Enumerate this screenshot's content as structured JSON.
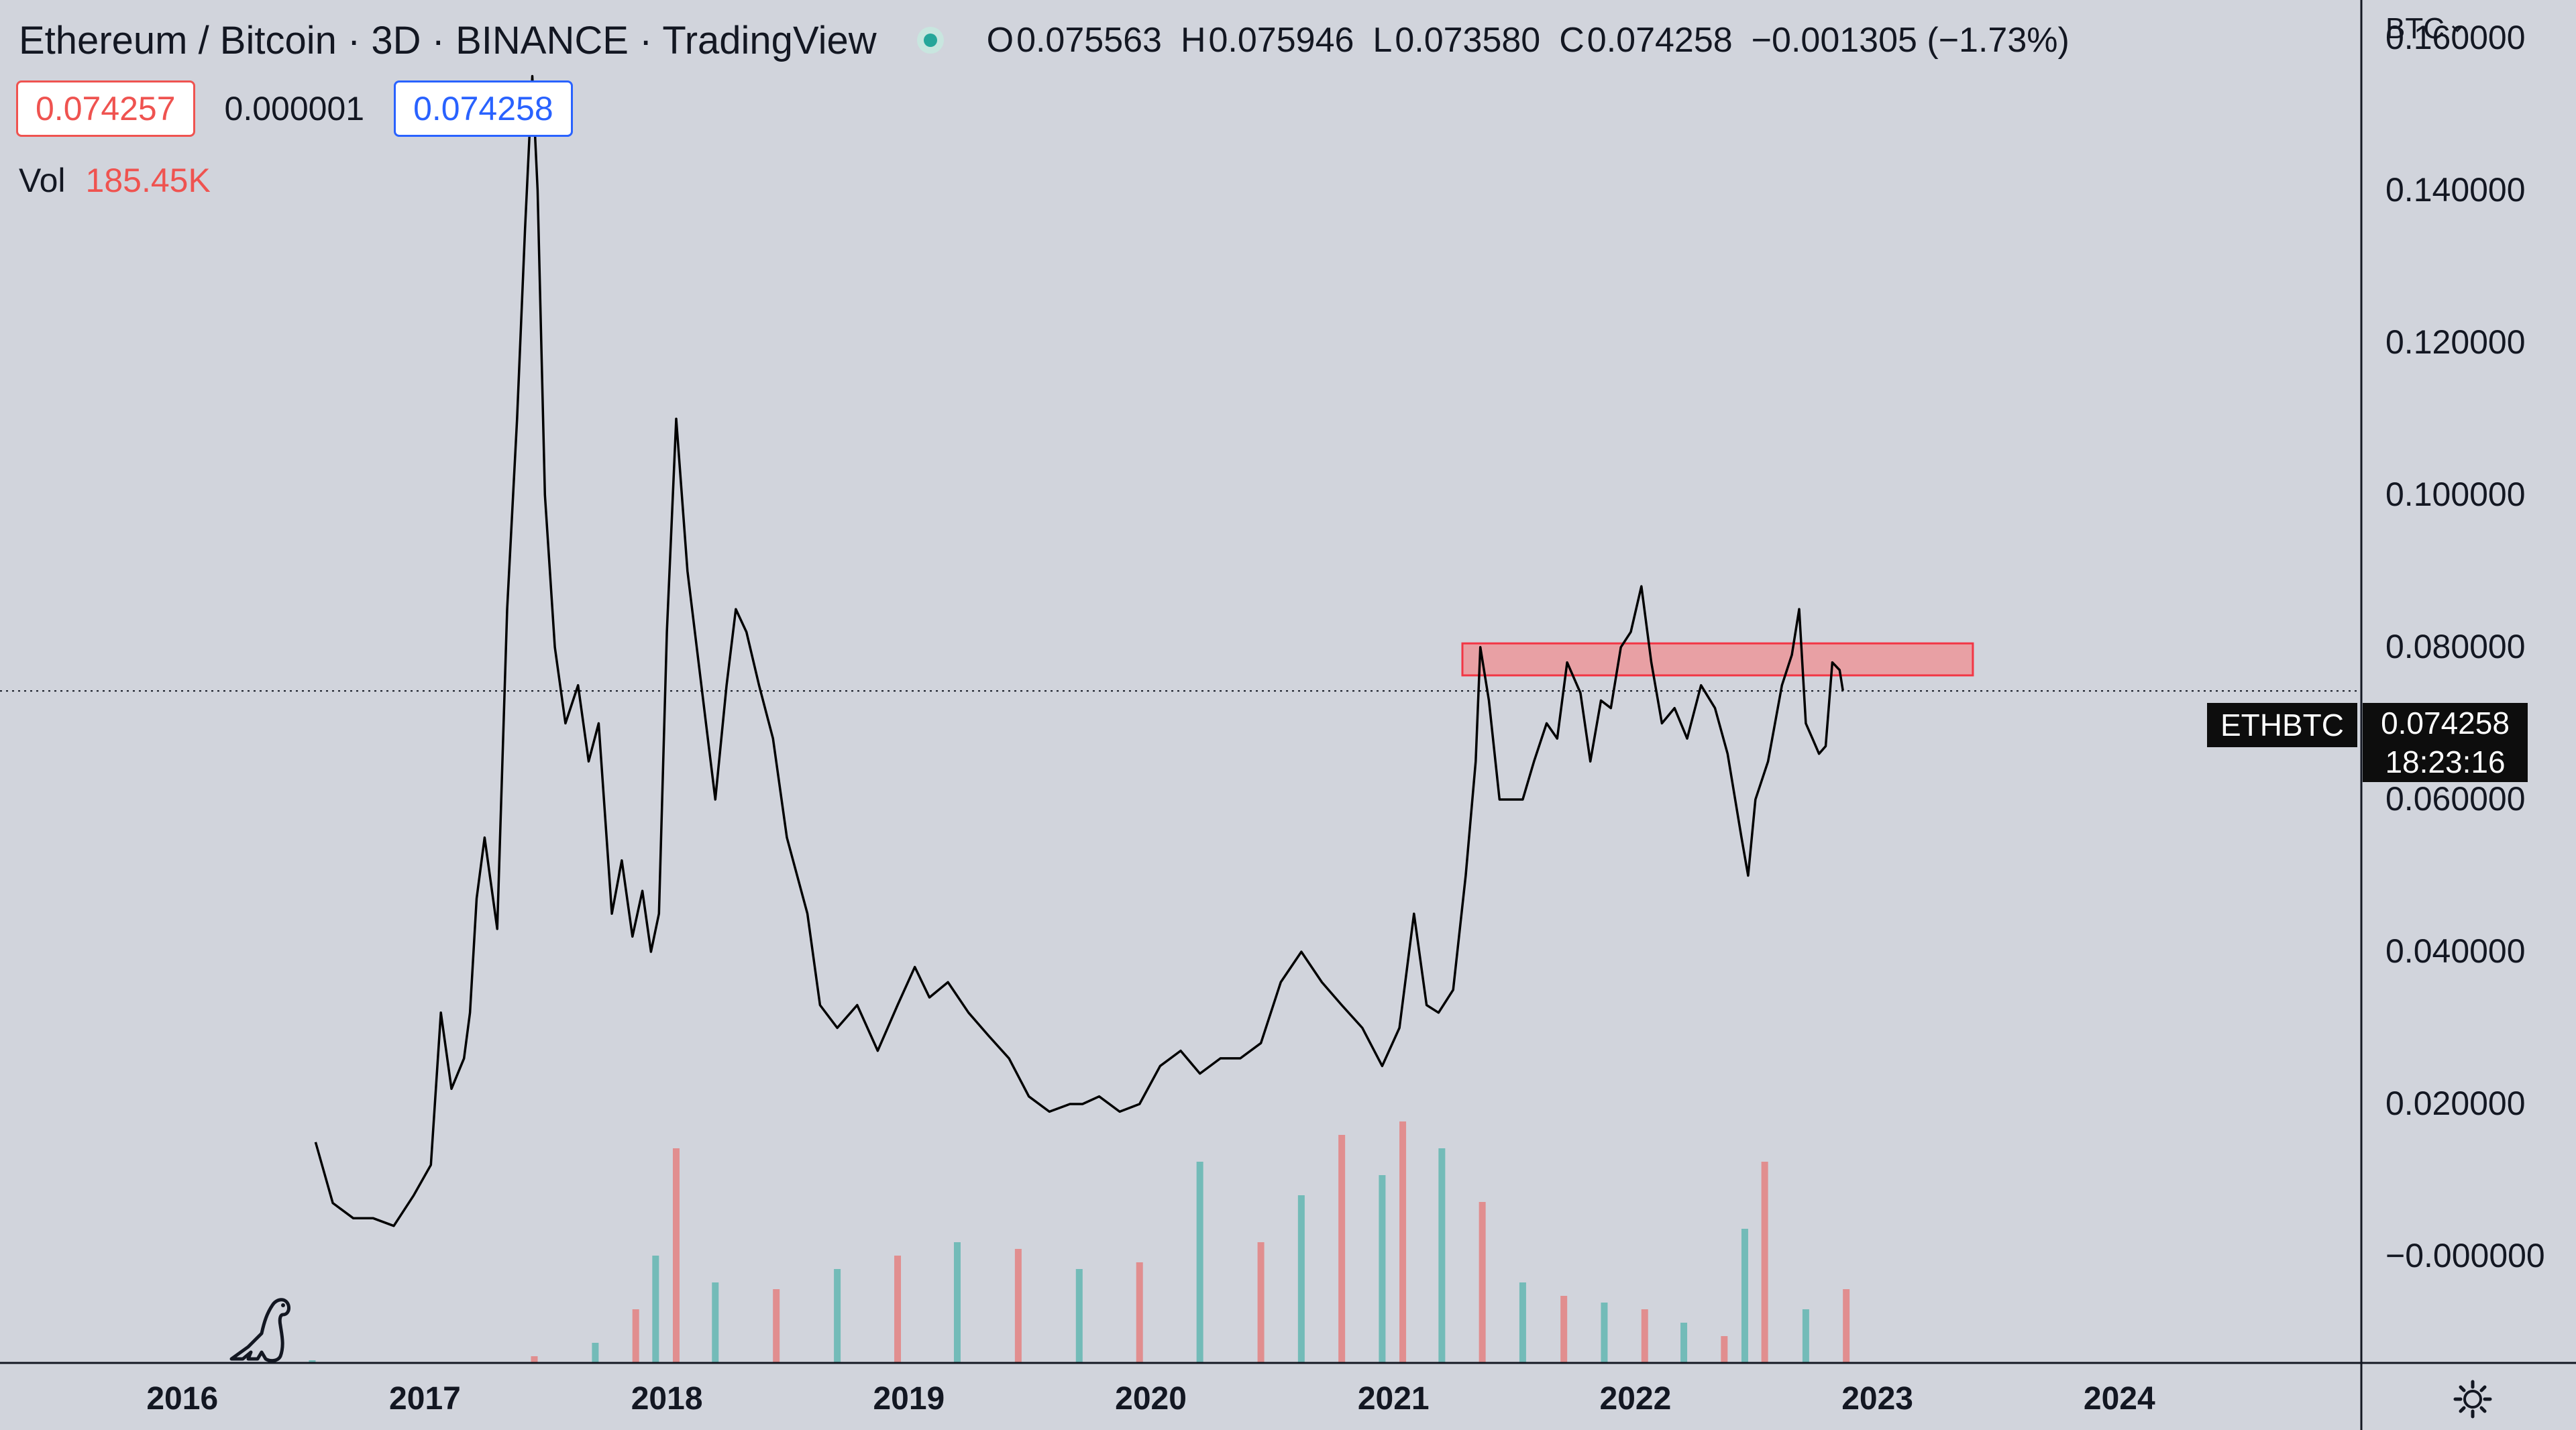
{
  "header": {
    "title": "Ethereum / Bitcoin · 3D · BINANCE · TradingView",
    "ohlc": [
      {
        "key": "O",
        "value": "0.075563"
      },
      {
        "key": "H",
        "value": "0.075946"
      },
      {
        "key": "L",
        "value": "0.073580"
      },
      {
        "key": "C",
        "value": "0.074258"
      }
    ],
    "change": "−0.001305 (−1.73%)"
  },
  "trade": {
    "sell": "0.074257",
    "spread": "0.000001",
    "buy": "0.074258"
  },
  "volume": {
    "label": "Vol",
    "value": "185.45K"
  },
  "price_axis": {
    "currency": "BTC"
  },
  "last_price": {
    "symbol": "ETHBTC",
    "price": "0.074258",
    "countdown": "18:23:16"
  },
  "colors": {
    "background": "#d1d4dc",
    "line": "#000000",
    "volume_up": "#26a69a",
    "volume_down": "#ef5350",
    "zone_fill": "#e8a0a4",
    "zone_border": "#f23645"
  },
  "chart_data": {
    "type": "line",
    "symbol": "ETHBTC",
    "interval": "3D",
    "x": [
      "2016-07-20",
      "2016-08-15",
      "2016-09-15",
      "2016-10-15",
      "2016-11-15",
      "2016-12-15",
      "2017-01-10",
      "2017-01-25",
      "2017-02-10",
      "2017-03-01",
      "2017-03-10",
      "2017-03-20",
      "2017-04-01",
      "2017-04-20",
      "2017-05-05",
      "2017-05-20",
      "2017-06-01",
      "2017-06-12",
      "2017-06-20",
      "2017-07-01",
      "2017-07-16",
      "2017-08-01",
      "2017-08-20",
      "2017-09-05",
      "2017-09-20",
      "2017-10-10",
      "2017-10-25",
      "2017-11-10",
      "2017-11-25",
      "2017-12-08",
      "2017-12-20",
      "2018-01-01",
      "2018-01-15",
      "2018-02-01",
      "2018-02-15",
      "2018-03-01",
      "2018-03-15",
      "2018-04-01",
      "2018-04-15",
      "2018-05-01",
      "2018-05-20",
      "2018-06-10",
      "2018-07-01",
      "2018-08-01",
      "2018-08-20",
      "2018-09-15",
      "2018-10-15",
      "2018-11-15",
      "2018-12-15",
      "2019-01-10",
      "2019-02-01",
      "2019-03-01",
      "2019-04-01",
      "2019-05-01",
      "2019-06-01",
      "2019-07-01",
      "2019-08-01",
      "2019-09-01",
      "2019-09-20",
      "2019-10-15",
      "2019-11-15",
      "2019-12-15",
      "2020-01-15",
      "2020-02-15",
      "2020-03-15",
      "2020-04-15",
      "2020-05-15",
      "2020-06-15",
      "2020-07-15",
      "2020-08-15",
      "2020-09-15",
      "2020-10-15",
      "2020-11-15",
      "2020-12-15",
      "2021-01-10",
      "2021-02-01",
      "2021-02-20",
      "2021-03-10",
      "2021-04-01",
      "2021-04-20",
      "2021-05-05",
      "2021-05-12",
      "2021-05-25",
      "2021-06-10",
      "2021-06-25",
      "2021-07-15",
      "2021-08-01",
      "2021-08-20",
      "2021-09-05",
      "2021-09-20",
      "2021-10-10",
      "2021-10-25",
      "2021-11-10",
      "2021-11-25",
      "2021-12-10",
      "2021-12-25",
      "2022-01-10",
      "2022-01-25",
      "2022-02-10",
      "2022-03-01",
      "2022-03-20",
      "2022-04-10",
      "2022-05-01",
      "2022-05-20",
      "2022-06-10",
      "2022-06-20",
      "2022-07-01",
      "2022-07-20",
      "2022-08-10",
      "2022-08-25",
      "2022-09-05",
      "2022-09-15",
      "2022-09-25",
      "2022-10-05",
      "2022-10-15",
      "2022-10-25",
      "2022-11-05",
      "2022-11-10"
    ],
    "y": [
      0.015,
      0.007,
      0.005,
      0.005,
      0.004,
      0.008,
      0.012,
      0.032,
      0.022,
      0.026,
      0.032,
      0.047,
      0.055,
      0.043,
      0.085,
      0.11,
      0.135,
      0.155,
      0.14,
      0.1,
      0.08,
      0.07,
      0.075,
      0.065,
      0.07,
      0.045,
      0.052,
      0.042,
      0.048,
      0.04,
      0.045,
      0.082,
      0.11,
      0.09,
      0.08,
      0.07,
      0.06,
      0.075,
      0.085,
      0.082,
      0.075,
      0.068,
      0.055,
      0.045,
      0.033,
      0.03,
      0.033,
      0.027,
      0.033,
      0.038,
      0.034,
      0.036,
      0.032,
      0.029,
      0.026,
      0.021,
      0.019,
      0.02,
      0.02,
      0.021,
      0.019,
      0.02,
      0.025,
      0.027,
      0.024,
      0.026,
      0.026,
      0.028,
      0.036,
      0.04,
      0.036,
      0.033,
      0.03,
      0.025,
      0.03,
      0.045,
      0.033,
      0.032,
      0.035,
      0.05,
      0.065,
      0.08,
      0.073,
      0.06,
      0.06,
      0.06,
      0.065,
      0.07,
      0.068,
      0.078,
      0.074,
      0.065,
      0.073,
      0.072,
      0.08,
      0.082,
      0.088,
      0.078,
      0.07,
      0.072,
      0.068,
      0.075,
      0.072,
      0.066,
      0.055,
      0.05,
      0.06,
      0.065,
      0.075,
      0.079,
      0.085,
      0.07,
      0.068,
      0.066,
      0.067,
      0.078,
      0.077,
      0.0743
    ],
    "volume": {
      "x": [
        "2016-07",
        "2017-06",
        "2017-09",
        "2017-11",
        "2017-12",
        "2018-01",
        "2018-03",
        "2018-06",
        "2018-09",
        "2018-12",
        "2019-03",
        "2019-06",
        "2019-09",
        "2019-12",
        "2020-03",
        "2020-06",
        "2020-08",
        "2020-10",
        "2020-12",
        "2021-01",
        "2021-03",
        "2021-05",
        "2021-07",
        "2021-09",
        "2021-11",
        "2022-01",
        "2022-03",
        "2022-05",
        "2022-06",
        "2022-07",
        "2022-09",
        "2022-11"
      ],
      "values": [
        2,
        5,
        15,
        40,
        80,
        160,
        60,
        55,
        70,
        80,
        90,
        85,
        70,
        75,
        150,
        90,
        125,
        170,
        140,
        180,
        160,
        120,
        60,
        50,
        45,
        40,
        30,
        20,
        100,
        150,
        40,
        55
      ]
    },
    "xlabel": "",
    "ylabel": "",
    "xlim": [
      "2015-04-01",
      "2024-12-31"
    ],
    "ylim": [
      -0.014,
      0.165
    ],
    "y_ticks": [
      "0.160000",
      "0.140000",
      "0.120000",
      "0.100000",
      "0.080000",
      "0.060000",
      "0.040000",
      "0.020000",
      "−0.000000"
    ],
    "x_ticks": [
      "2016",
      "2017",
      "2018",
      "2019",
      "2020",
      "2021",
      "2022",
      "2023",
      "2024"
    ],
    "last_price_line": 0.074258,
    "annotations": [
      {
        "type": "rectangle",
        "x": [
          "2021-04-15",
          "2023-05-25"
        ],
        "y": [
          0.0763,
          0.0805
        ]
      }
    ],
    "grid": false
  }
}
